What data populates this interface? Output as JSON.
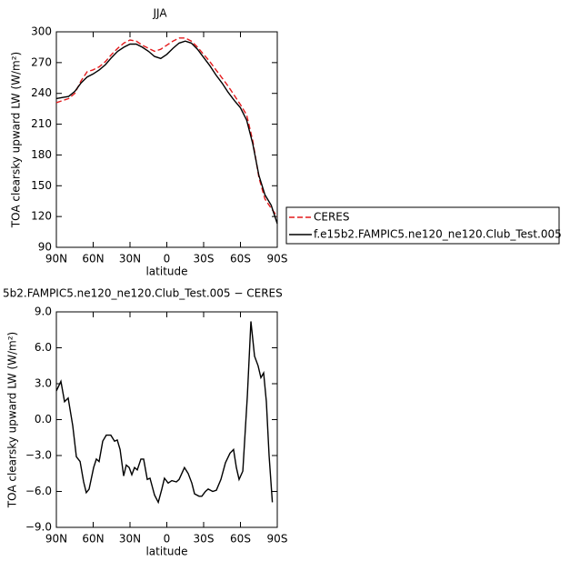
{
  "chart_data": [
    {
      "type": "line",
      "title": "JJA",
      "x_label": "latitude",
      "y_label": "TOA clearsky upward LW (W/m²)",
      "xlim": [
        90,
        -90
      ],
      "ylim": [
        90,
        300
      ],
      "xticks": [
        {
          "value": 90,
          "label": "90N"
        },
        {
          "value": 60,
          "label": "60N"
        },
        {
          "value": 30,
          "label": "30N"
        },
        0,
        {
          "value": -30,
          "label": "30S"
        },
        {
          "value": -60,
          "label": "60S"
        },
        {
          "value": -90,
          "label": "90S"
        }
      ],
      "yticks": [
        90,
        120,
        150,
        180,
        210,
        240,
        270,
        300
      ],
      "legend": "right",
      "x": [
        90,
        85,
        80,
        75,
        70,
        65,
        60,
        55,
        50,
        45,
        40,
        35,
        30,
        25,
        20,
        15,
        10,
        5,
        0,
        -5,
        -10,
        -15,
        -20,
        -25,
        -30,
        -35,
        -40,
        -45,
        -50,
        -55,
        -60,
        -65,
        -70,
        -75,
        -80,
        -85,
        -90
      ],
      "series": [
        {
          "name": "CERES",
          "color": "#e41a1c",
          "line_style": "dashed",
          "values": [
            231,
            233,
            235,
            240,
            252,
            261,
            263,
            266,
            271,
            278,
            284,
            289,
            292,
            291,
            287,
            284,
            281,
            283,
            287,
            291,
            294,
            294,
            291,
            285,
            278,
            271,
            263,
            255,
            247,
            238,
            229,
            219,
            194,
            158,
            137,
            128,
            120
          ]
        },
        {
          "name": "f.e15b2.FAMPIC5.ne120_ne120.Club_Test.005",
          "color": "#000000",
          "line_style": "solid",
          "values": [
            235,
            236,
            237,
            242,
            250,
            256,
            259,
            263,
            268,
            275,
            281,
            285,
            288,
            288,
            285,
            281,
            276,
            274,
            278,
            284,
            289,
            291,
            289,
            283,
            275,
            267,
            258,
            250,
            241,
            233,
            226,
            214,
            191,
            160,
            141,
            131,
            113
          ]
        }
      ]
    },
    {
      "type": "line",
      "title": "5b2.FAMPIC5.ne120_ne120.Club_Test.005 − CERES",
      "x_label": "latitude",
      "y_label": "TOA clearsky upward LW (W/m²)",
      "xlim": [
        90,
        -90
      ],
      "ylim": [
        -9,
        9
      ],
      "xticks": [
        {
          "value": 90,
          "label": "90N"
        },
        {
          "value": 60,
          "label": "60N"
        },
        {
          "value": 30,
          "label": "30N"
        },
        0,
        {
          "value": -30,
          "label": "30S"
        },
        {
          "value": -60,
          "label": "60S"
        },
        {
          "value": -90,
          "label": "90S"
        }
      ],
      "yticks": [
        {
          "value": -9,
          "label": "−9.0"
        },
        {
          "value": -6,
          "label": "−6.0"
        },
        {
          "value": -3,
          "label": "−3.0"
        },
        {
          "value": 0,
          "label": "0.0"
        },
        {
          "value": 3,
          "label": "3.0"
        },
        {
          "value": 6,
          "label": "6.0"
        },
        {
          "value": 9,
          "label": "9.0"
        }
      ],
      "x": [
        90,
        86.3,
        83.3,
        80.4,
        76.7,
        73.7,
        70.7,
        67.8,
        65.6,
        63.3,
        59.6,
        57.4,
        55.2,
        52.2,
        49.3,
        45.6,
        42.6,
        40.4,
        38.1,
        35.2,
        33,
        30.7,
        28.5,
        26.3,
        24.1,
        21.1,
        18.9,
        15.9,
        13.7,
        10,
        7,
        4.1,
        1.9,
        -1.1,
        -4.1,
        -7.8,
        -10,
        -14.4,
        -17.4,
        -20.4,
        -22.6,
        -26.3,
        -28.5,
        -31.5,
        -33.7,
        -37.4,
        -40.4,
        -44.1,
        -47.8,
        -51.5,
        -54.4,
        -56.7,
        -58.9,
        -61.9,
        -65.6,
        -68.5,
        -71.5,
        -74.4,
        -76.7,
        -78.9,
        -81.1,
        -83.3,
        -86
      ],
      "series": [
        {
          "color": "#000000",
          "line_style": "solid",
          "values": [
            2.4,
            3.2,
            1.5,
            1.8,
            -0.5,
            -3.1,
            -3.5,
            -5.2,
            -6.1,
            -5.8,
            -4.0,
            -3.3,
            -3.5,
            -1.8,
            -1.3,
            -1.3,
            -1.8,
            -1.7,
            -2.5,
            -4.7,
            -3.8,
            -4.0,
            -4.6,
            -4.0,
            -4.2,
            -3.3,
            -3.3,
            -5.0,
            -4.9,
            -6.3,
            -6.9,
            -5.8,
            -4.9,
            -5.3,
            -5.1,
            -5.2,
            -5.0,
            -4.0,
            -4.5,
            -5.3,
            -6.2,
            -6.4,
            -6.4,
            -6.0,
            -5.8,
            -6.0,
            -5.9,
            -5.0,
            -3.6,
            -2.8,
            -2.5,
            -4.0,
            -5.0,
            -4.3,
            2.0,
            8.2,
            5.3,
            4.5,
            3.5,
            3.9,
            1.5,
            -3.0,
            -6.9
          ]
        }
      ]
    }
  ]
}
